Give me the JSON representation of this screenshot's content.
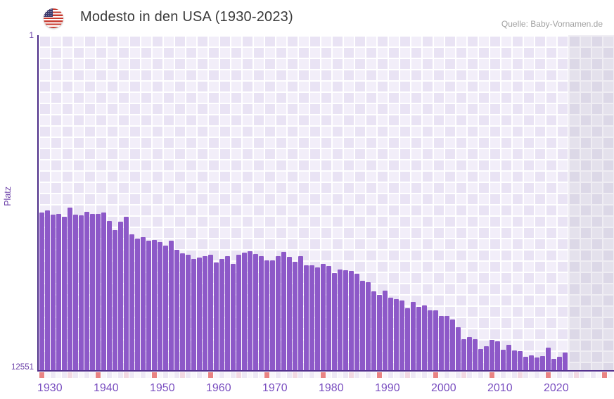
{
  "header": {
    "title": "Modesto in den USA (1930-2023)",
    "source": "Quelle: Baby-Vornamen.de",
    "flag": "us-flag-icon"
  },
  "chart_data": {
    "type": "bar",
    "title": "Modesto in den USA (1930-2023)",
    "ylabel": "Platz",
    "xlabel": "",
    "y_axis": {
      "top_label": "1",
      "bottom_label": "12551",
      "min": 1,
      "max": 12551,
      "inverted": true
    },
    "x_ticks": [
      "1930",
      "1940",
      "1950",
      "1960",
      "1970",
      "1980",
      "1990",
      "2000",
      "2010",
      "2020"
    ],
    "legend": null,
    "grid": true,
    "years": [
      1930,
      1931,
      1932,
      1933,
      1934,
      1935,
      1936,
      1937,
      1938,
      1939,
      1940,
      1941,
      1942,
      1943,
      1944,
      1945,
      1946,
      1947,
      1948,
      1949,
      1950,
      1951,
      1952,
      1953,
      1954,
      1955,
      1956,
      1957,
      1958,
      1959,
      1960,
      1961,
      1962,
      1963,
      1964,
      1965,
      1966,
      1967,
      1968,
      1969,
      1970,
      1971,
      1972,
      1973,
      1974,
      1975,
      1976,
      1977,
      1978,
      1979,
      1980,
      1981,
      1982,
      1983,
      1984,
      1985,
      1986,
      1987,
      1988,
      1989,
      1990,
      1991,
      1992,
      1993,
      1994,
      1995,
      1996,
      1997,
      1998,
      1999,
      2000,
      2001,
      2002,
      2003,
      2004,
      2005,
      2006,
      2007,
      2008,
      2009,
      2010,
      2011,
      2012,
      2013,
      2014,
      2015,
      2016,
      2017,
      2018,
      2019,
      2020,
      2021,
      2022,
      2023
    ],
    "ranks": [
      6650,
      6560,
      6720,
      6690,
      6800,
      6470,
      6720,
      6750,
      6620,
      6690,
      6700,
      6640,
      6970,
      7310,
      6990,
      6800,
      7450,
      7630,
      7570,
      7700,
      7680,
      7740,
      7880,
      7700,
      8030,
      8180,
      8240,
      8380,
      8330,
      8270,
      8240,
      8510,
      8380,
      8290,
      8580,
      8240,
      8140,
      8100,
      8200,
      8270,
      8450,
      8450,
      8290,
      8130,
      8310,
      8490,
      8290,
      8610,
      8610,
      8710,
      8580,
      8640,
      8900,
      8770,
      8800,
      8840,
      8950,
      9190,
      9250,
      9600,
      9740,
      9580,
      9830,
      9890,
      9930,
      10230,
      10000,
      10180,
      10130,
      10320,
      10320,
      10530,
      10530,
      10640,
      10950,
      11380,
      11320,
      11400,
      11750,
      11660,
      11430,
      11470,
      11780,
      11600,
      11820,
      11840,
      12040,
      12000,
      12080,
      12020,
      11710,
      12120,
      12060,
      11890
    ],
    "marker_years_start": 1930,
    "marker_years_end": 2031
  },
  "colors": {
    "bar": "#8d59c8",
    "axis": "#4b2b87",
    "tick_text": "#7a4fc0",
    "marker_decade": "#e98383",
    "marker_half_decade": "#f2d8e2",
    "marker_even": "#ede8f5",
    "marker_odd": "#f8f6fb"
  }
}
